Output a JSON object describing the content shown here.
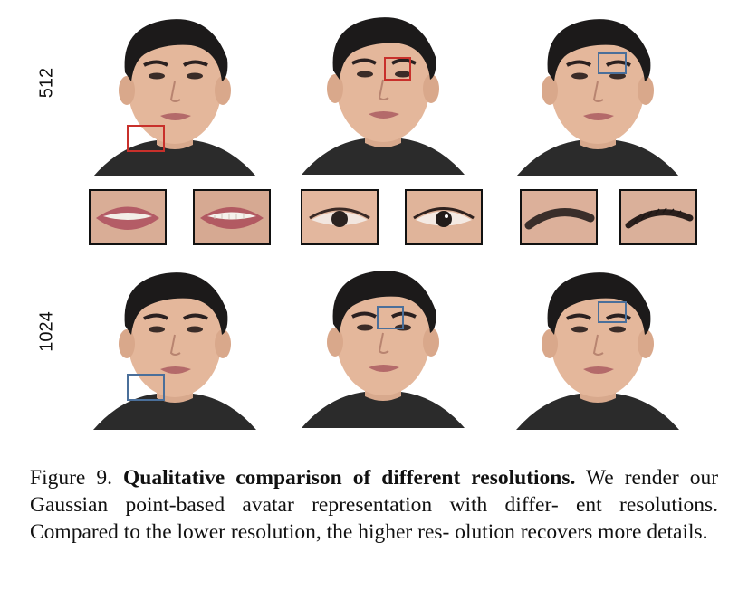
{
  "figure": {
    "row_labels": [
      "512",
      "1024"
    ],
    "caption": {
      "number": "Figure 9.",
      "title": "Qualitative comparison of different resolutions.",
      "lines": [
        "We",
        "render our Gaussian point-based avatar representation with differ-",
        "ent resolutions. Compared to the lower resolution, the higher res-",
        "olution recovers more details."
      ]
    },
    "colors": {
      "low_res_box": "#c8302b",
      "high_res_box": "#4a6f9a"
    },
    "zoom_crops": [
      "mouth",
      "mouth",
      "eye",
      "eye",
      "eyebrow",
      "eyebrow"
    ]
  }
}
